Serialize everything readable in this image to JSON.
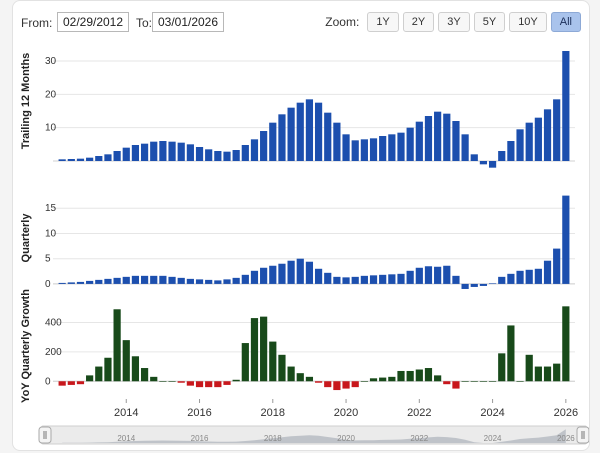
{
  "controls": {
    "from_label": "From:",
    "from_value": "02/29/2012",
    "to_label": "To:",
    "to_value": "03/01/2026",
    "zoom_label": "Zoom:",
    "zoom_options": [
      "1Y",
      "2Y",
      "3Y",
      "5Y",
      "10Y",
      "All"
    ],
    "zoom_selected": "All"
  },
  "chart_data": [
    {
      "type": "bar",
      "ylabel": "Trailing 12 Months",
      "ylim": [
        0,
        36
      ],
      "yticks": [
        10,
        20,
        30
      ],
      "color": "#1c4fae",
      "x": [
        2012.25,
        2012.5,
        2012.75,
        2013.0,
        2013.25,
        2013.5,
        2013.75,
        2014.0,
        2014.25,
        2014.5,
        2014.75,
        2015.0,
        2015.25,
        2015.5,
        2015.75,
        2016.0,
        2016.25,
        2016.5,
        2016.75,
        2017.0,
        2017.25,
        2017.5,
        2017.75,
        2018.0,
        2018.25,
        2018.5,
        2018.75,
        2019.0,
        2019.25,
        2019.5,
        2019.75,
        2020.0,
        2020.25,
        2020.5,
        2020.75,
        2021.0,
        2021.25,
        2021.5,
        2021.75,
        2022.0,
        2022.25,
        2022.5,
        2022.75,
        2023.0,
        2023.25,
        2023.5,
        2023.75,
        2024.0,
        2024.25,
        2024.5,
        2024.75,
        2025.0,
        2025.25,
        2025.5,
        2025.75,
        2026.0
      ],
      "values": [
        0.5,
        0.6,
        0.7,
        1.0,
        1.5,
        2.0,
        3.0,
        4.0,
        4.8,
        5.2,
        5.8,
        6.0,
        5.8,
        5.5,
        5.0,
        4.2,
        3.5,
        3.0,
        2.8,
        3.3,
        4.8,
        6.5,
        9.0,
        11.5,
        14.0,
        16.0,
        17.5,
        18.5,
        17.5,
        14.5,
        11.5,
        8.0,
        6.2,
        6.5,
        6.8,
        7.5,
        8.0,
        8.5,
        10.0,
        11.8,
        13.5,
        14.8,
        14.2,
        12.0,
        8.0,
        2.0,
        -1.0,
        -2.0,
        3.0,
        6.0,
        9.5,
        11.5,
        13.0,
        15.5,
        18.5,
        33.0
      ]
    },
    {
      "type": "bar",
      "ylabel": "Quarterly",
      "ylim": [
        -1.8,
        20
      ],
      "yticks": [
        0,
        5,
        10,
        15
      ],
      "color": "#1c4fae",
      "x": [
        2012.25,
        2012.5,
        2012.75,
        2013.0,
        2013.25,
        2013.5,
        2013.75,
        2014.0,
        2014.25,
        2014.5,
        2014.75,
        2015.0,
        2015.25,
        2015.5,
        2015.75,
        2016.0,
        2016.25,
        2016.5,
        2016.75,
        2017.0,
        2017.25,
        2017.5,
        2017.75,
        2018.0,
        2018.25,
        2018.5,
        2018.75,
        2019.0,
        2019.25,
        2019.5,
        2019.75,
        2020.0,
        2020.25,
        2020.5,
        2020.75,
        2021.0,
        2021.25,
        2021.5,
        2021.75,
        2022.0,
        2022.25,
        2022.5,
        2022.75,
        2023.0,
        2023.25,
        2023.5,
        2023.75,
        2024.0,
        2024.25,
        2024.5,
        2024.75,
        2025.0,
        2025.25,
        2025.5,
        2025.75,
        2026.0
      ],
      "values": [
        0.2,
        0.3,
        0.4,
        0.6,
        0.8,
        1.0,
        1.2,
        1.4,
        1.6,
        1.6,
        1.6,
        1.6,
        1.4,
        1.2,
        1.0,
        0.9,
        0.8,
        0.7,
        0.9,
        1.2,
        1.8,
        2.6,
        3.2,
        3.6,
        4.0,
        4.6,
        5.0,
        4.4,
        3.0,
        2.2,
        1.4,
        1.3,
        1.4,
        1.6,
        1.7,
        1.8,
        1.9,
        2.0,
        2.6,
        3.2,
        3.5,
        3.4,
        3.6,
        1.6,
        -1.0,
        -0.6,
        -0.4,
        0.1,
        1.4,
        2.0,
        2.6,
        2.8,
        3.0,
        4.6,
        7.0,
        17.5
      ]
    },
    {
      "type": "bar",
      "ylabel": "YoY Quarterly Growth",
      "ylim": [
        -80,
        560
      ],
      "yticks": [
        0,
        200,
        400
      ],
      "positive_color": "#184a1a",
      "negative_color": "#c8171c",
      "x": [
        2012.25,
        2012.5,
        2012.75,
        2013.0,
        2013.25,
        2013.5,
        2013.75,
        2014.0,
        2014.25,
        2014.5,
        2014.75,
        2015.0,
        2015.25,
        2015.5,
        2015.75,
        2016.0,
        2016.25,
        2016.5,
        2016.75,
        2017.0,
        2017.25,
        2017.5,
        2017.75,
        2018.0,
        2018.25,
        2018.5,
        2018.75,
        2019.0,
        2019.25,
        2019.5,
        2019.75,
        2020.0,
        2020.25,
        2020.5,
        2020.75,
        2021.0,
        2021.25,
        2021.5,
        2021.75,
        2022.0,
        2022.25,
        2022.5,
        2022.75,
        2023.0,
        2023.25,
        2023.5,
        2023.75,
        2024.0,
        2024.25,
        2024.5,
        2024.75,
        2025.0,
        2025.25,
        2025.5,
        2025.75,
        2026.0
      ],
      "values": [
        -30,
        -25,
        -20,
        40,
        100,
        160,
        490,
        280,
        170,
        90,
        30,
        0,
        0,
        -10,
        -30,
        -40,
        -40,
        -40,
        -25,
        10,
        260,
        430,
        440,
        270,
        180,
        100,
        55,
        30,
        -10,
        -40,
        -60,
        -50,
        -40,
        0,
        20,
        25,
        30,
        70,
        70,
        80,
        90,
        40,
        -20,
        -50,
        0,
        0,
        0,
        0,
        190,
        380,
        0,
        180,
        100,
        100,
        120,
        510
      ]
    }
  ],
  "x_axis": {
    "xlim": [
      2012.0,
      2026.25
    ],
    "ticks": [
      "2014",
      "2016",
      "2018",
      "2020",
      "2022",
      "2024",
      "2026"
    ]
  }
}
